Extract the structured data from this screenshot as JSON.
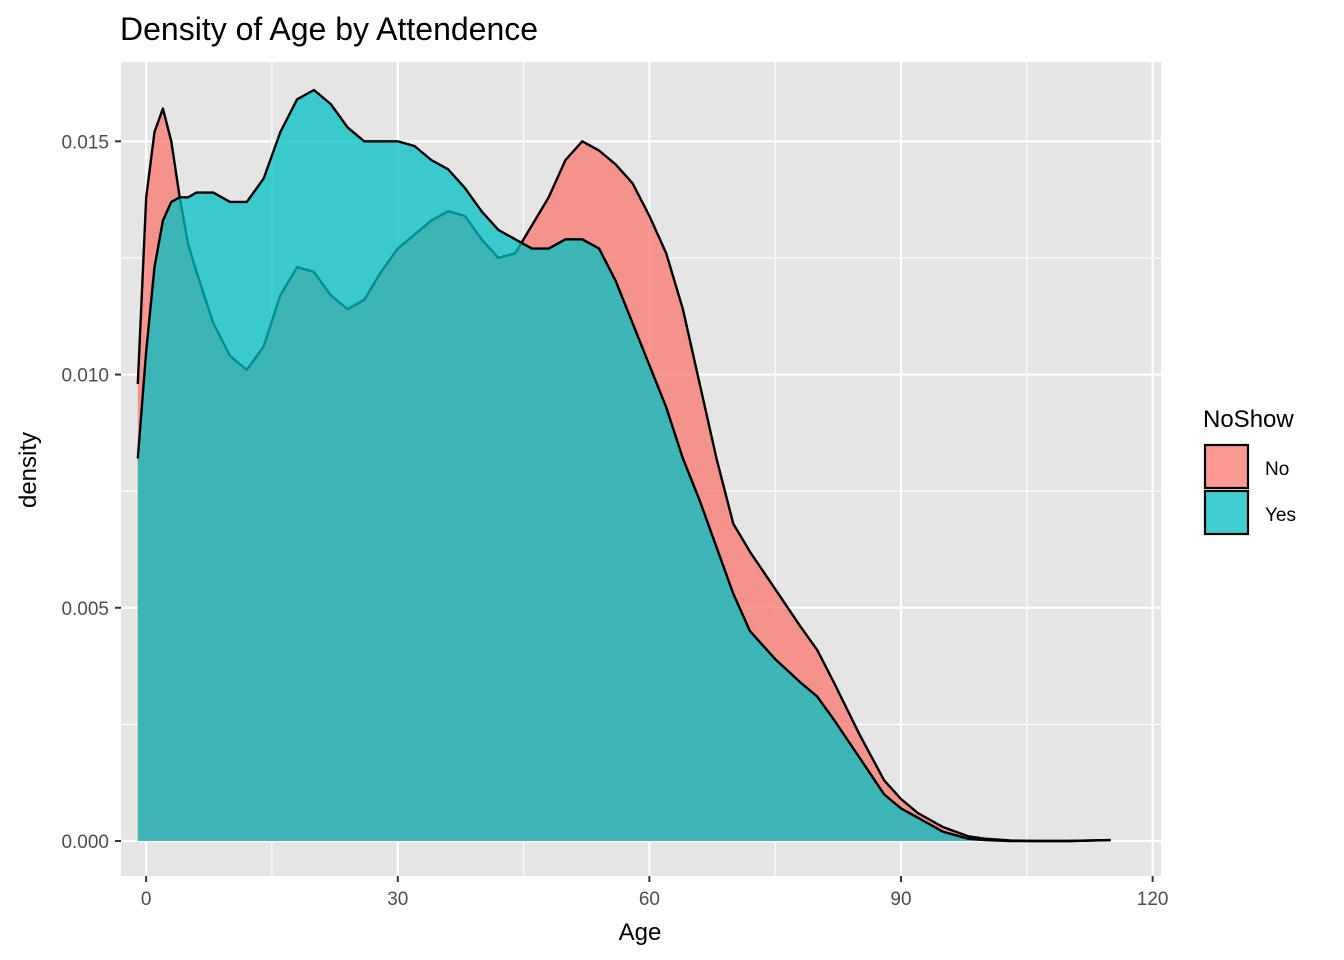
{
  "chart_data": {
    "type": "area",
    "subtype": "density",
    "title": "Density of Age by Attendence",
    "xlabel": "Age",
    "ylabel": "density",
    "xlim": [
      -3,
      121
    ],
    "ylim": [
      -0.00075,
      0.0167
    ],
    "x_ticks": [
      0,
      30,
      60,
      90,
      120
    ],
    "y_ticks": [
      0.0,
      0.005,
      0.01,
      0.015
    ],
    "x_tick_labels": [
      "0",
      "30",
      "60",
      "90",
      "120"
    ],
    "y_tick_labels": [
      "0.000",
      "0.005",
      "0.010",
      "0.015"
    ],
    "grid": true,
    "legend": {
      "title": "NoShow",
      "position": "right",
      "entries": [
        "No",
        "Yes"
      ]
    },
    "series": [
      {
        "name": "No",
        "color": "#F8766D",
        "x": [
          -1,
          0,
          1,
          2,
          3,
          4,
          5,
          6,
          8,
          10,
          12,
          14,
          16,
          18,
          20,
          22,
          24,
          26,
          28,
          30,
          32,
          34,
          36,
          38,
          40,
          42,
          44,
          46,
          48,
          50,
          52,
          54,
          56,
          58,
          60,
          62,
          64,
          66,
          68,
          70,
          72,
          75,
          78,
          80,
          82,
          85,
          88,
          90,
          92,
          95,
          98,
          100,
          103,
          106,
          110,
          115
        ],
        "y": [
          0.0098,
          0.0138,
          0.0152,
          0.0157,
          0.015,
          0.0138,
          0.0128,
          0.0122,
          0.0111,
          0.0104,
          0.0101,
          0.0106,
          0.0117,
          0.0123,
          0.0122,
          0.0117,
          0.0114,
          0.0116,
          0.0122,
          0.0127,
          0.013,
          0.0133,
          0.0135,
          0.0134,
          0.0129,
          0.0125,
          0.0126,
          0.0132,
          0.0138,
          0.0146,
          0.015,
          0.0148,
          0.0145,
          0.0141,
          0.0134,
          0.0126,
          0.0114,
          0.0098,
          0.0082,
          0.0068,
          0.0062,
          0.0054,
          0.0046,
          0.0041,
          0.0034,
          0.0023,
          0.0013,
          0.0009,
          0.0006,
          0.0003,
          0.0001,
          5e-05,
          1e-05,
          0.0,
          0.0,
          2e-05
        ]
      },
      {
        "name": "Yes",
        "color": "#00BFC4",
        "x": [
          -1,
          0,
          1,
          2,
          3,
          4,
          5,
          6,
          8,
          10,
          12,
          14,
          16,
          18,
          20,
          22,
          24,
          26,
          28,
          30,
          32,
          34,
          36,
          38,
          40,
          42,
          44,
          46,
          48,
          50,
          52,
          54,
          56,
          58,
          60,
          62,
          64,
          66,
          68,
          70,
          72,
          75,
          78,
          80,
          82,
          85,
          88,
          90,
          92,
          95,
          98,
          100,
          103,
          106,
          110,
          115
        ],
        "y": [
          0.0082,
          0.0105,
          0.0123,
          0.0133,
          0.0137,
          0.0138,
          0.0138,
          0.0139,
          0.0139,
          0.0137,
          0.0137,
          0.0142,
          0.0152,
          0.0159,
          0.0161,
          0.0158,
          0.0153,
          0.015,
          0.015,
          0.015,
          0.0149,
          0.0146,
          0.0144,
          0.014,
          0.0135,
          0.0131,
          0.0129,
          0.0127,
          0.0127,
          0.0129,
          0.0129,
          0.0127,
          0.012,
          0.0111,
          0.0102,
          0.0093,
          0.0082,
          0.0073,
          0.0063,
          0.0053,
          0.0045,
          0.0039,
          0.0034,
          0.0031,
          0.0026,
          0.0018,
          0.001,
          0.0007,
          0.0005,
          0.0002,
          5e-05,
          2e-05,
          0.0,
          0.0,
          0.0,
          2e-05
        ]
      }
    ]
  },
  "style": {
    "panel_bg": "#E5E5E5",
    "grid_color": "#FFFFFF",
    "no_color": "#F8766D",
    "yes_color": "#00BFC4",
    "fill_opacity": 0.75
  }
}
